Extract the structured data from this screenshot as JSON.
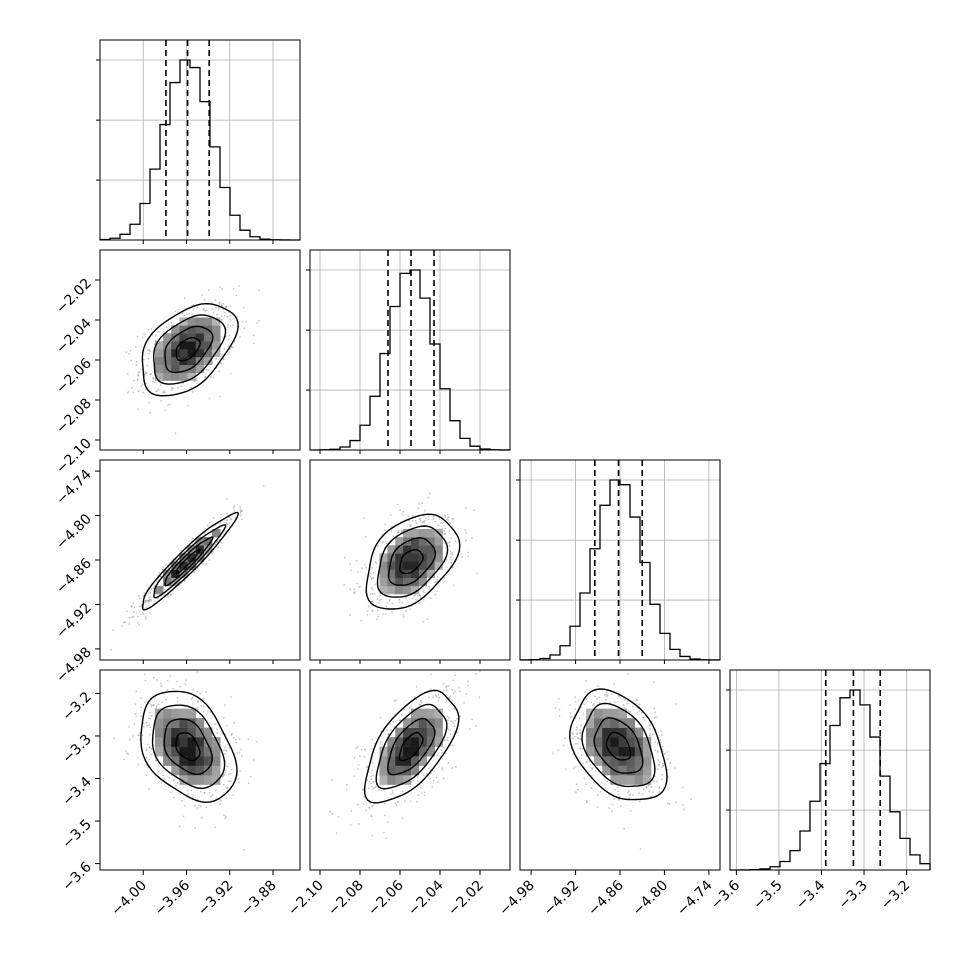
{
  "chart_data": {
    "type": "corner",
    "grid": true,
    "colors": {
      "line": "#000000",
      "grid": "#b0b0b0",
      "background": "#ffffff",
      "sample": "#7f7f7f"
    },
    "params": [
      {
        "range": [
          -4.04,
          -3.855
        ],
        "ticks": [
          -4.0,
          -3.96,
          -3.92,
          -3.88
        ],
        "tick_labels": [
          "−4.00",
          "−3.96",
          "−3.92",
          "−3.88"
        ],
        "mean": -3.959,
        "sigma": 0.022,
        "quantiles": [
          -3.979,
          -3.959,
          -3.939
        ]
      },
      {
        "range": [
          -2.105,
          -2.005
        ],
        "ticks": [
          -2.1,
          -2.08,
          -2.06,
          -2.04,
          -2.02
        ],
        "tick_labels": [
          "−2.10",
          "−2.08",
          "−2.06",
          "−2.04",
          "−2.02"
        ],
        "mean": -2.0545,
        "sigma": 0.0115,
        "quantiles": [
          -2.066,
          -2.0545,
          -2.043
        ]
      },
      {
        "range": [
          -4.995,
          -4.725
        ],
        "ticks": [
          -4.98,
          -4.92,
          -4.86,
          -4.8,
          -4.74
        ],
        "tick_labels": [
          "−4.98",
          "−4.92",
          "−4.86",
          "−4.80",
          "−4.74"
        ],
        "mean": -4.862,
        "sigma": 0.032,
        "quantiles": [
          -4.894,
          -4.862,
          -4.83
        ]
      },
      {
        "range": [
          -3.615,
          -3.145
        ],
        "ticks": [
          -3.6,
          -3.5,
          -3.4,
          -3.3,
          -3.2
        ],
        "tick_labels": [
          "−3.6",
          "−3.5",
          "−3.4",
          "−3.3",
          "−3.2"
        ],
        "mean": -3.325,
        "sigma": 0.065,
        "quantiles": [
          -3.39,
          -3.325,
          -3.262
        ]
      }
    ],
    "correlations": [
      {
        "i": 1,
        "j": 0,
        "rho": 0.45
      },
      {
        "i": 2,
        "j": 0,
        "rho": 0.95
      },
      {
        "i": 2,
        "j": 1,
        "rho": 0.4
      },
      {
        "i": 3,
        "j": 0,
        "rho": -0.35
      },
      {
        "i": 3,
        "j": 1,
        "rho": 0.6
      },
      {
        "i": 3,
        "j": 2,
        "rho": -0.35
      }
    ],
    "histogram_bins": 20,
    "contour_levels_sigma": [
      0.5,
      1.0,
      1.5,
      2.0
    ]
  }
}
